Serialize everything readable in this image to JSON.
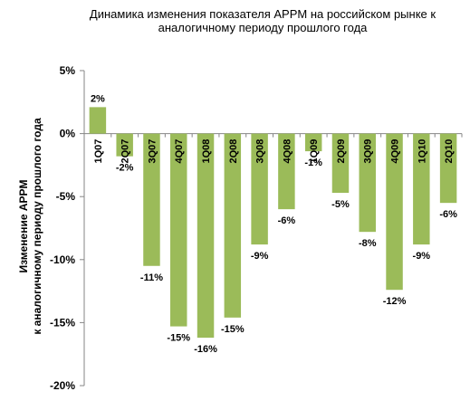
{
  "chart_data": {
    "type": "bar",
    "title_lines": [
      "Динамика изменения показателя APPM на российском рынке к",
      "аналогичному периоду прошлого года"
    ],
    "ylabel_lines": [
      "Изменение APPM",
      "к аналогичному периоду прошлого года"
    ],
    "xlabel": "",
    "categories": [
      "1Q07",
      "2Q07",
      "3Q07",
      "4Q07",
      "1Q08",
      "2Q08",
      "3Q08",
      "4Q08",
      "1Q09",
      "2Q09",
      "3Q09",
      "4Q09",
      "1Q10",
      "2Q10"
    ],
    "values": [
      2.1,
      -1.8,
      -10.5,
      -15.3,
      -16.2,
      -14.6,
      -8.8,
      -6.0,
      -1.4,
      -4.7,
      -7.8,
      -12.4,
      -8.8,
      -5.5
    ],
    "value_labels": [
      "2%",
      "-2%",
      "-11%",
      "-15%",
      "-16%",
      "-15%",
      "-9%",
      "-6%",
      "-1%",
      "-5%",
      "-8%",
      "-12%",
      "-9%",
      "-6%"
    ],
    "ylim": [
      -20,
      5
    ],
    "yticks": [
      5,
      0,
      -5,
      -10,
      -15,
      -20
    ],
    "ytick_labels": [
      "5%",
      "0%",
      "-5%",
      "-10%",
      "-15%",
      "-20%"
    ],
    "grid": false,
    "legend": "none",
    "colors": {
      "bar": "#9BBB59",
      "axis": "#868686"
    }
  }
}
